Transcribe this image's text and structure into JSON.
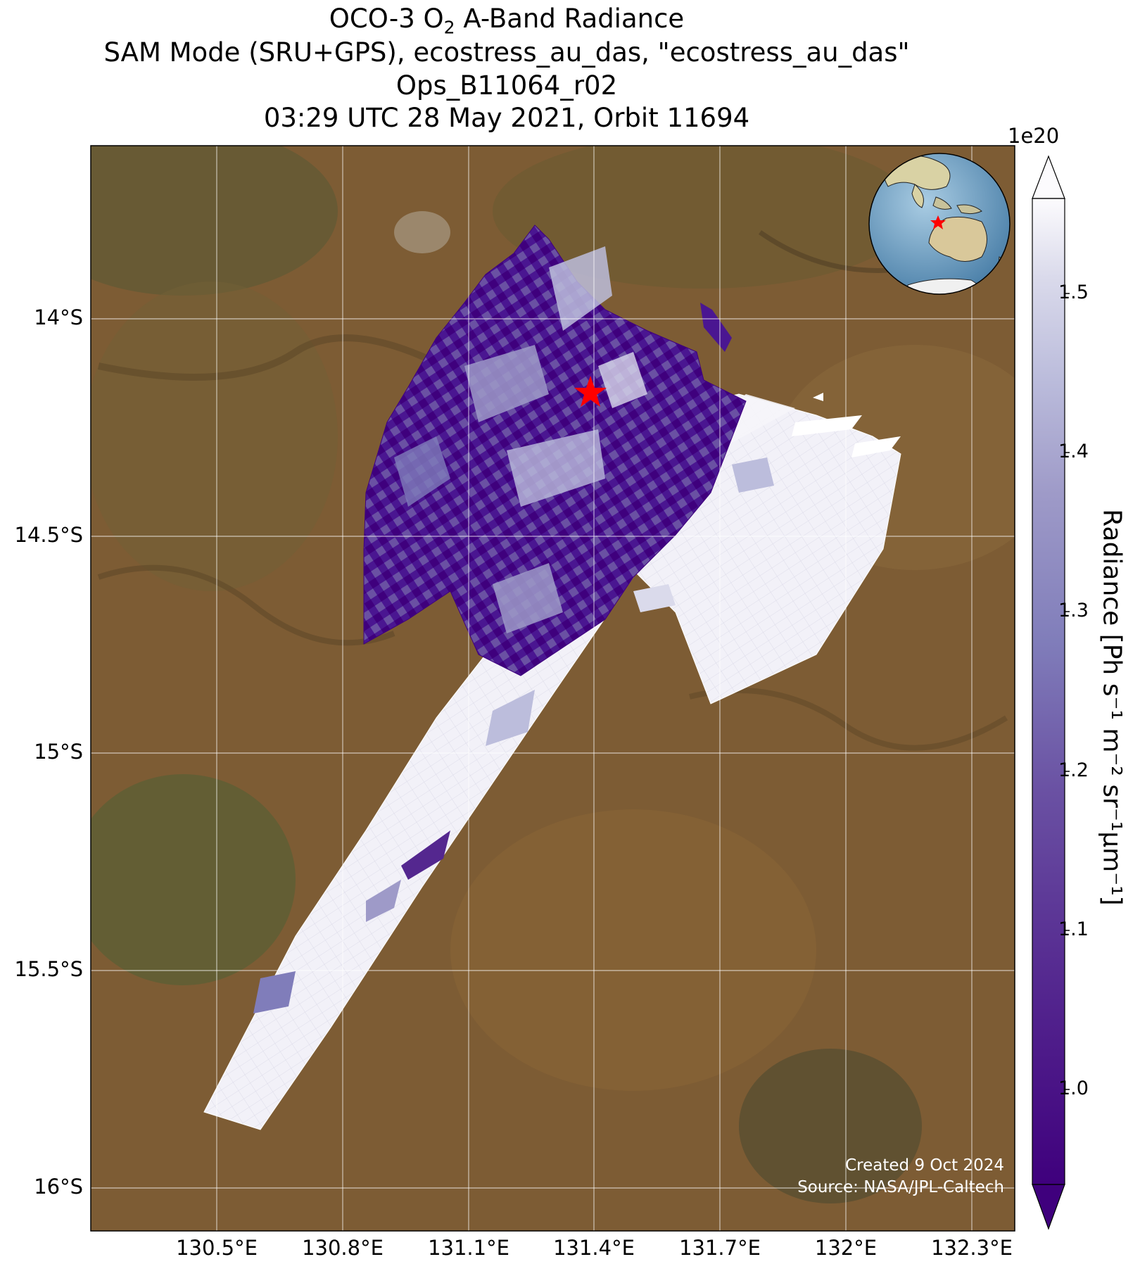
{
  "title": {
    "line1_prefix": "OCO-3 O",
    "line1_sub": "2",
    "line1_suffix": " A-Band Radiance",
    "line2": "SAM Mode (SRU+GPS), ecostress_au_das, \"ecostress_au_das\"",
    "line3": "Ops_B11064_r02",
    "line4": "03:29 UTC 28 May 2021, Orbit 11694"
  },
  "axes": {
    "lat_ticks": [
      "14°S",
      "14.5°S",
      "15°S",
      "15.5°S",
      "16°S"
    ],
    "lat_values": [
      -14.0,
      -14.5,
      -15.0,
      -15.5,
      -16.0
    ],
    "lon_ticks": [
      "130.5°E",
      "130.8°E",
      "131.1°E",
      "131.4°E",
      "131.7°E",
      "132°E",
      "132.3°E"
    ],
    "lon_values": [
      130.5,
      130.8,
      131.1,
      131.4,
      131.7,
      132.0,
      132.3
    ],
    "lat_range": [
      -16.1,
      -13.6
    ],
    "lon_range": [
      130.18,
      132.4
    ],
    "grid": true
  },
  "colorbar": {
    "label": "Radiance [Ph s⁻¹ m⁻² sr⁻¹μm⁻¹]",
    "exponent": "1e20",
    "ticks": [
      "1.0",
      "1.1",
      "1.2",
      "1.3",
      "1.4",
      "1.5"
    ],
    "tick_values": [
      1.0,
      1.1,
      1.2,
      1.3,
      1.4,
      1.5
    ],
    "range": [
      0.95,
      1.56
    ],
    "colormap": "Purples_r",
    "low_color": "#3f007d",
    "high_color": "#fcfbfd",
    "extend": "both"
  },
  "target_marker": {
    "lon": 131.39,
    "lat": -14.16,
    "shape": "star",
    "color": "#ff0000"
  },
  "inset_globe": {
    "center": "Australia",
    "marker": "star",
    "marker_color": "#ff0000"
  },
  "credits": {
    "created": "Created 9 Oct 2024",
    "source": "Source: NASA/JPL-Caltech"
  },
  "chart_data": {
    "type": "map",
    "variable": "O2 A-Band Radiance",
    "units_scale": 1e+20,
    "swaths": [
      {
        "region": "northern block",
        "lon_range": [
          130.85,
          131.73
        ],
        "lat_range": [
          -14.85,
          -13.78
        ],
        "typical_value": 1.05
      },
      {
        "region": "eastern block",
        "lon_range": [
          131.4,
          132.17
        ],
        "lat_range": [
          -14.93,
          -14.18
        ],
        "typical_value": 1.48
      },
      {
        "region": "southwest strip",
        "lon_range": [
          130.46,
          131.4
        ],
        "lat_range": [
          -15.87,
          -14.72
        ],
        "typical_value": 1.45
      }
    ]
  }
}
